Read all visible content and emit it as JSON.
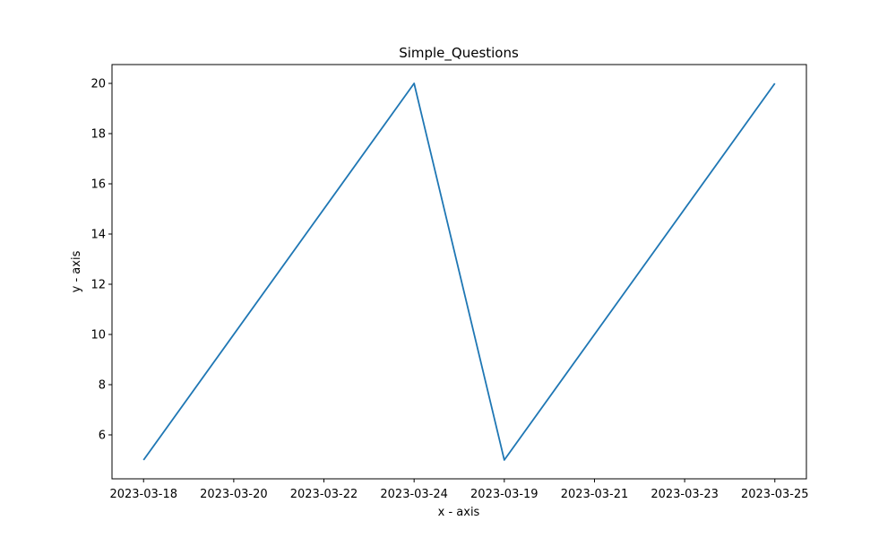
{
  "chart_data": {
    "type": "line",
    "title": "Simple_Questions",
    "xlabel": "x - axis",
    "ylabel": "y - axis",
    "x_tick_labels": [
      "2023-03-18",
      "2023-03-20",
      "2023-03-22",
      "2023-03-24",
      "2023-03-19",
      "2023-03-21",
      "2023-03-23",
      "2023-03-25"
    ],
    "y_ticks": [
      6,
      8,
      10,
      12,
      14,
      16,
      18,
      20
    ],
    "ylim": [
      4.25,
      20.75
    ],
    "grid": false,
    "series": [
      {
        "color": "#1f77b4",
        "points": [
          {
            "x": "2023-03-18",
            "y": 5
          },
          {
            "x": "2023-03-24",
            "y": 20
          },
          {
            "x": "2023-03-19",
            "y": 5
          },
          {
            "x": "2023-03-25",
            "y": 20
          }
        ]
      }
    ]
  }
}
